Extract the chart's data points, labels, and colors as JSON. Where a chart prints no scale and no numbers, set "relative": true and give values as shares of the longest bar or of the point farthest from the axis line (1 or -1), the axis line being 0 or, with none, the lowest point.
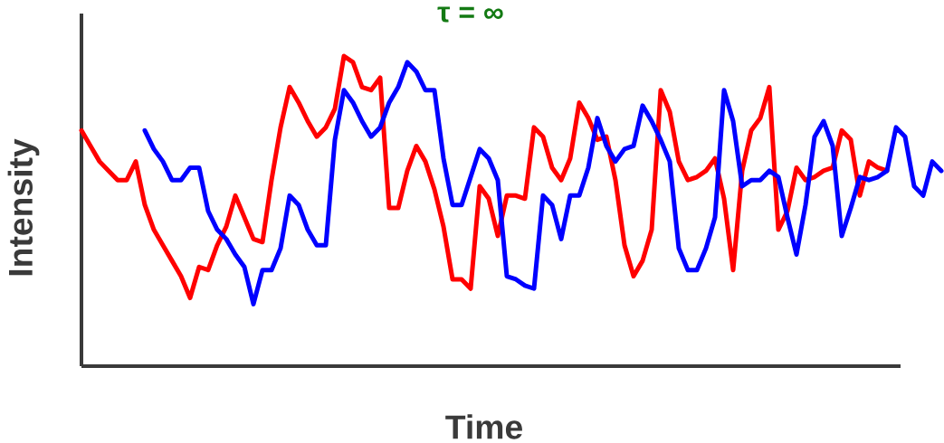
{
  "chart_data": {
    "type": "line",
    "title": "τ = ∞",
    "xlabel": "Time",
    "ylabel": "Intensity",
    "relative": true,
    "categories": [
      null,
      null,
      null,
      null,
      null,
      null,
      null,
      null,
      null,
      null,
      null,
      null,
      null,
      null,
      null,
      null,
      null,
      null,
      null,
      null,
      null,
      null,
      null,
      null,
      null,
      null,
      null,
      null,
      null,
      null,
      null,
      null,
      null,
      null,
      null,
      null,
      null,
      null,
      null,
      null,
      null,
      null,
      null,
      null,
      null,
      null,
      null,
      null,
      null,
      null,
      null,
      null,
      null,
      null,
      null,
      null,
      null,
      null,
      null,
      null,
      null,
      null,
      null,
      null,
      null,
      null,
      null,
      null,
      null,
      null,
      null,
      null,
      null,
      null,
      null,
      null,
      null,
      null,
      null,
      null,
      null,
      null,
      null,
      null,
      null,
      null,
      null,
      null,
      null,
      null,
      null,
      null,
      null,
      null,
      null,
      null
    ],
    "series": [
      {
        "color": "#ff0000",
        "values": [
          0.76,
          0.71,
          0.66,
          0.63,
          0.6,
          0.6,
          0.66,
          0.52,
          0.44,
          0.39,
          0.34,
          0.29,
          0.22,
          0.32,
          0.31,
          0.39,
          0.45,
          0.55,
          0.48,
          0.41,
          0.4,
          0.6,
          0.77,
          0.9,
          0.85,
          0.79,
          0.74,
          0.77,
          0.83,
          1,
          0.98,
          0.9,
          0.89,
          0.93,
          0.51,
          0.51,
          0.63,
          0.71,
          0.66,
          0.57,
          0.45,
          0.28,
          0.28,
          0.25,
          0.58,
          0.54,
          0.42,
          0.55,
          0.55,
          0.54,
          0.77,
          0.74,
          0.64,
          0.6,
          0.67,
          0.85,
          0.8,
          0.73,
          0.74,
          0.6,
          0.39,
          0.29,
          0.34,
          0.44,
          0.89,
          0.82,
          0.66,
          0.6,
          0.61,
          0.63,
          0.67,
          0.54,
          0.31,
          0.63,
          0.76,
          0.8,
          0.9,
          0.44,
          0.5,
          0.64,
          0.6,
          0.61,
          0.63,
          0.64,
          0.76,
          0.73,
          0.55,
          0.66,
          0.64,
          0.63,
          null,
          null,
          null,
          null,
          null,
          null
        ]
      },
      {
        "color": "#0000ff",
        "values": [
          null,
          null,
          null,
          null,
          null,
          null,
          null,
          0.76,
          0.7,
          0.66,
          0.6,
          0.6,
          0.64,
          0.64,
          0.5,
          0.44,
          0.41,
          0.36,
          0.32,
          0.2,
          0.31,
          0.31,
          0.38,
          0.55,
          0.52,
          0.44,
          0.39,
          0.39,
          0.73,
          0.89,
          0.85,
          0.79,
          0.74,
          0.77,
          0.85,
          0.9,
          0.98,
          0.95,
          0.89,
          0.89,
          0.67,
          0.52,
          0.52,
          0.61,
          0.7,
          0.67,
          0.6,
          0.29,
          0.28,
          0.26,
          0.25,
          0.55,
          0.52,
          0.41,
          0.55,
          0.55,
          0.64,
          0.8,
          0.71,
          0.66,
          0.7,
          0.71,
          0.84,
          0.79,
          0.73,
          0.66,
          0.38,
          0.31,
          0.31,
          0.38,
          0.48,
          0.89,
          0.79,
          0.58,
          0.6,
          0.6,
          0.63,
          0.61,
          0.48,
          0.36,
          0.52,
          0.74,
          0.79,
          0.71,
          0.42,
          0.51,
          0.61,
          0.6,
          0.61,
          0.63,
          0.77,
          0.74,
          0.58,
          0.55,
          0.66,
          0.63
        ]
      }
    ]
  }
}
